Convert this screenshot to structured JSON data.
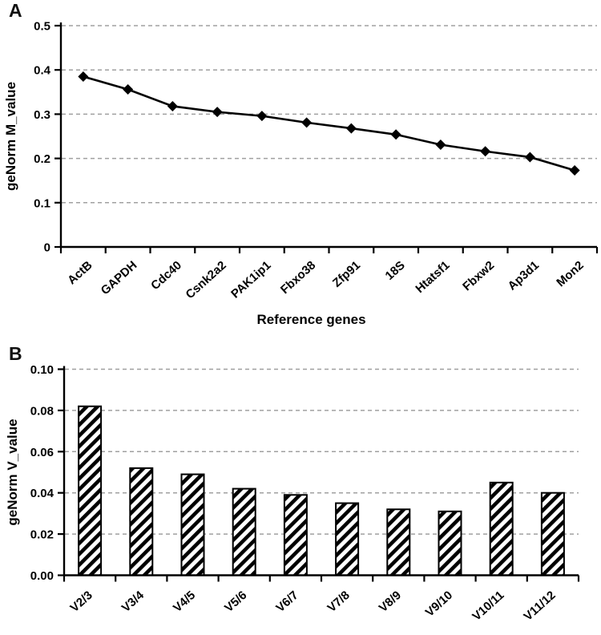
{
  "figure": {
    "background": "#ffffff",
    "panels": [
      {
        "label": "A"
      },
      {
        "label": "B"
      }
    ]
  },
  "chart_data": [
    {
      "panel": "A",
      "type": "line",
      "title": "",
      "xlabel": "Reference genes",
      "ylabel": "geNorm M_value",
      "categories": [
        "ActB",
        "GAPDH",
        "Cdc40",
        "Csnk2a2",
        "PAK1ip1",
        "Fbxo38",
        "Zfp91",
        "18S",
        "Htatsf1",
        "Fbxw2",
        "Ap3d1",
        "Mon2"
      ],
      "values": [
        0.385,
        0.356,
        0.318,
        0.305,
        0.296,
        0.281,
        0.268,
        0.254,
        0.231,
        0.216,
        0.203,
        0.173
      ],
      "ylim": [
        0,
        0.5
      ],
      "ytick_values": [
        0,
        0.1,
        0.2,
        0.3,
        0.4,
        0.5
      ],
      "ytick_labels": [
        "0",
        "0.1",
        "0.2",
        "0.3",
        "0.4",
        "0.5"
      ],
      "grid": "horizontal-dashed",
      "legend": "none",
      "marker": "diamond",
      "colors": {
        "line": "#000000",
        "marker": "#000000",
        "axis": "#000000",
        "grid": "#a0a0a0"
      }
    },
    {
      "panel": "B",
      "type": "bar",
      "title": "",
      "xlabel": "",
      "ylabel": "geNorm V_value",
      "categories": [
        "V2/3",
        "V3/4",
        "V4/5",
        "V5/6",
        "V6/7",
        "V7/8",
        "V8/9",
        "V9/10",
        "V10/11",
        "V11/12"
      ],
      "values": [
        0.082,
        0.052,
        0.049,
        0.042,
        0.039,
        0.035,
        0.032,
        0.031,
        0.045,
        0.04
      ],
      "ylim": [
        0,
        0.1
      ],
      "ytick_values": [
        0,
        0.02,
        0.04,
        0.06,
        0.08,
        0.1
      ],
      "ytick_labels": [
        "0.00",
        "0.02",
        "0.04",
        "0.06",
        "0.08",
        "0.10"
      ],
      "grid": "horizontal-dashed",
      "legend": "none",
      "bar_style": "white-with-black-diagonal-hatch",
      "colors": {
        "bar_outline": "#000000",
        "hatch": "#000000",
        "axis": "#000000",
        "grid": "#a0a0a0"
      }
    }
  ]
}
